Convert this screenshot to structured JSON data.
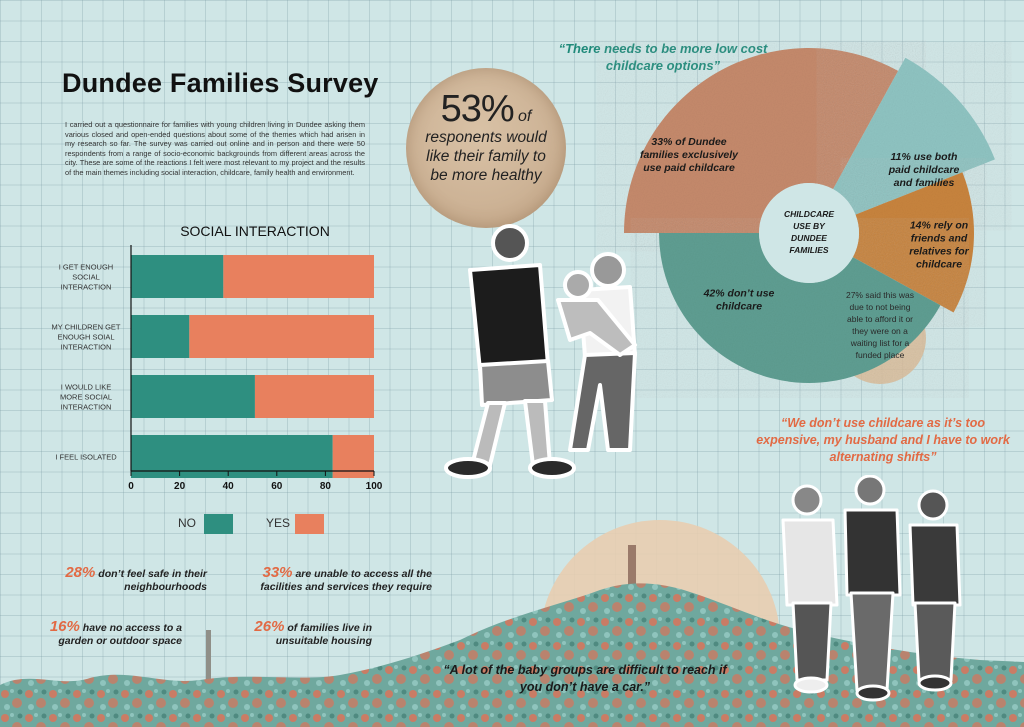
{
  "page": {
    "title": "Dundee Families Survey",
    "intro": "I carried out a questionnaire for families with young children living in Dundee asking them various closed and open-ended questions about some of the themes which had arisen in my research so far. The survey was carried out online and in person and there were 50 respondents from a range of socio-economic backgrounds from different areas across the city. These are some of the reactions I felt were most relevant to my project and the results of the main themes including social interaction, childcare, family health and environment."
  },
  "health": {
    "percent": "53%",
    "of": "of",
    "line1": "responents would",
    "line2": "like their family to",
    "line3": "be more healthy"
  },
  "quotes": {
    "top": "“There needs to be more low cost childcare options”",
    "right": "“We don’t use childcare as it’s too expensive, my husband and I have to work alternating shifts”",
    "bottom": "“A lot of the baby groups are difficult to reach if you don’t have a car.”"
  },
  "stats": [
    {
      "pct": "28%",
      "text": "don’t feel safe in their neighbourhoods"
    },
    {
      "pct": "33%",
      "text": "are unable to access all the facilities and services they require"
    },
    {
      "pct": "16%",
      "text": "have no access to a garden or outdoor space"
    },
    {
      "pct": "26%",
      "text": "of families live in unsuitable housing"
    }
  ],
  "colors": {
    "teal": "#2e8f80",
    "orange": "#e8805e",
    "copper": "#c58a6c",
    "accent_text": "#e26a44",
    "quote_teal": "#1f8a7a"
  },
  "chart_data": [
    {
      "type": "bar",
      "orientation": "horizontal-stacked",
      "title": "SOCIAL INTERACTION",
      "categories": [
        [
          "I GET ENOUGH",
          "SOCIAL",
          "INTERACTION"
        ],
        [
          "MY CHILDREN GET",
          "ENOUGH SOIAL",
          "INTERACTION"
        ],
        [
          "I WOULD LIKE",
          "MORE SOCIAL",
          "INTERACTION"
        ],
        [
          "I FEEL ISOLATED"
        ]
      ],
      "series": [
        {
          "name": "NO",
          "color": "#2e8f80",
          "values": [
            38,
            24,
            51,
            83
          ]
        },
        {
          "name": "YES",
          "color": "#e8805e",
          "values": [
            62,
            76,
            49,
            17
          ]
        }
      ],
      "xlim": [
        0,
        100
      ],
      "xticks": [
        "0",
        "20",
        "40",
        "60",
        "80",
        "100"
      ],
      "legend": "bottom",
      "grid": false
    },
    {
      "type": "pie",
      "variant": "donut",
      "center_label": [
        "CHILDCARE",
        "USE BY",
        "DUNDEE",
        "FAMILIES"
      ],
      "slices": [
        {
          "value": 33,
          "label": [
            "33% of Dundee",
            "families exclusively",
            "use paid childcare"
          ],
          "color": "#c58a6c"
        },
        {
          "value": 11,
          "label": [
            "11% use both",
            "paid childcare",
            "and families"
          ],
          "color": "#8fc4c2"
        },
        {
          "value": 14,
          "label": [
            "14% rely on",
            "friends and",
            "relatives for",
            "childcare"
          ],
          "color": "#c8843e"
        },
        {
          "value": 42,
          "label": [
            "42% don’t use",
            "childcare"
          ],
          "color": "#5f9e92"
        }
      ],
      "note": [
        "27% said this was",
        "due to not being",
        "able to afford it or",
        "they were on a",
        "waiting list for a",
        "funded place"
      ]
    }
  ]
}
